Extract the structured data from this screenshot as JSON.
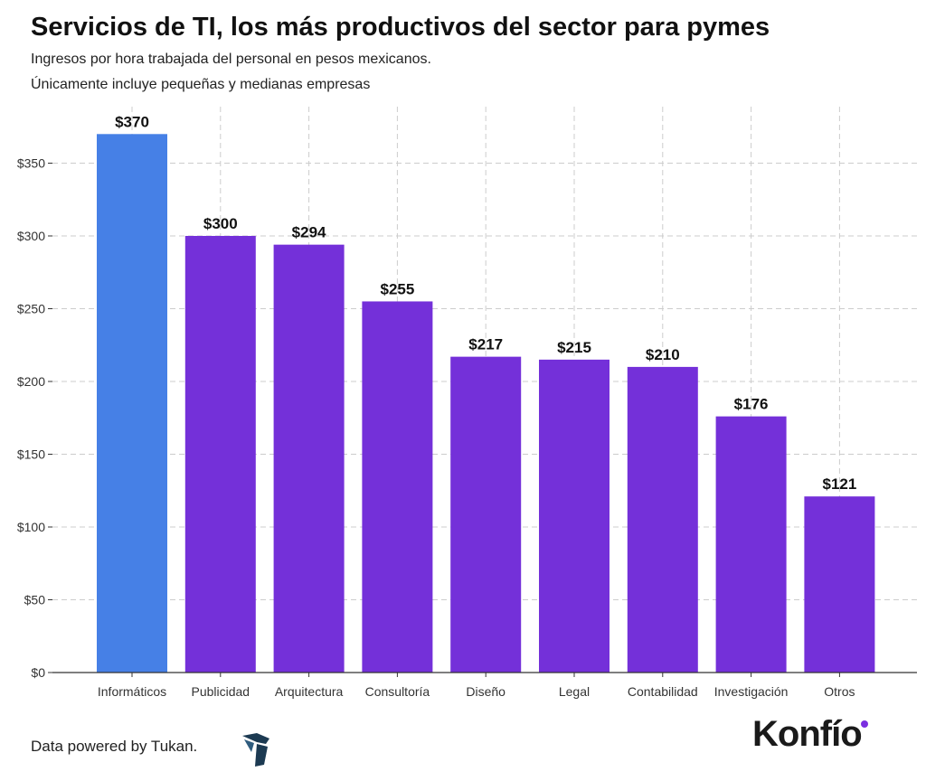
{
  "header": {
    "title": "Servicios de TI, los más productivos del sector para pymes",
    "subtitle_1": "Ingresos por hora trabajada del personal en pesos mexicanos.",
    "subtitle_2": "Únicamente incluye pequeñas y medianas empresas"
  },
  "footer": {
    "source_text": "Data powered by Tukan.",
    "source_logo_icon": "tukan-logo-icon",
    "brand_name": "Konfío",
    "brand_dot_color": "#7b2fe0"
  },
  "chart_data": {
    "type": "bar",
    "title": "Servicios de TI, los más productivos del sector para pymes",
    "categories": [
      "Informáticos",
      "Publicidad",
      "Arquitectura",
      "Consultoría",
      "Diseño",
      "Legal",
      "Contabilidad",
      "Investigación",
      "Otros"
    ],
    "values": [
      370,
      300,
      294,
      255,
      217,
      215,
      210,
      176,
      121
    ],
    "value_labels": [
      "$370",
      "$300",
      "$294",
      "$255",
      "$217",
      "$215",
      "$210",
      "$176",
      "$121"
    ],
    "highlight_index": 0,
    "colors": {
      "highlight": "#4680e6",
      "default": "#7430d9"
    },
    "ylim": [
      0,
      400
    ],
    "yticks": [
      0,
      50,
      100,
      150,
      200,
      250,
      300,
      350
    ],
    "ytick_labels": [
      "$0",
      "$50",
      "$100",
      "$150",
      "$200",
      "$250",
      "$300",
      "$350"
    ],
    "xlabel": "",
    "ylabel": "",
    "grid": true
  }
}
